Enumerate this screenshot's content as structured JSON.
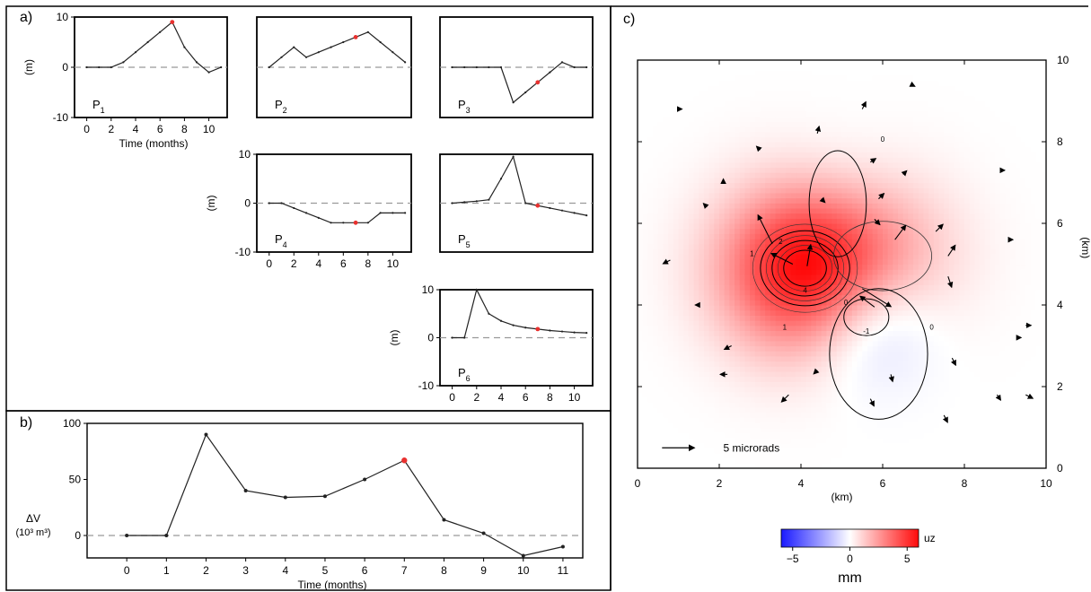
{
  "panels": {
    "a": "a)",
    "b": "b)",
    "c": "c)"
  },
  "chart_data": [
    {
      "type": "line",
      "panel": "a",
      "series_label": "P",
      "series_subscript": "1",
      "ylabel": "(m)",
      "xlabel": "Time (months)",
      "xlim": [
        -1,
        11.5
      ],
      "ylim": [
        -10,
        10
      ],
      "xticks": [
        0,
        2,
        4,
        6,
        8,
        10
      ],
      "yticks": [
        -10,
        0,
        10
      ],
      "x": [
        0,
        1,
        2,
        3,
        4,
        5,
        6,
        7,
        8,
        9,
        10,
        11
      ],
      "y": [
        0,
        0,
        0,
        1,
        3,
        5,
        7,
        9,
        4,
        1,
        -1,
        0
      ],
      "highlight_x": 7,
      "highlight_y": 9
    },
    {
      "type": "line",
      "panel": "a",
      "series_label": "P",
      "series_subscript": "2",
      "ylabel": "",
      "xlabel": "",
      "xlim": [
        -1,
        11.5
      ],
      "ylim": [
        -10,
        10
      ],
      "xticks": [],
      "yticks": [],
      "x": [
        0,
        1,
        2,
        3,
        4,
        5,
        6,
        7,
        8,
        9,
        10,
        11
      ],
      "y": [
        0,
        2,
        4,
        2,
        3,
        4,
        5,
        6,
        7,
        5,
        3,
        1
      ],
      "highlight_x": 7,
      "highlight_y": 6
    },
    {
      "type": "line",
      "panel": "a",
      "series_label": "P",
      "series_subscript": "3",
      "ylabel": "",
      "xlabel": "",
      "xlim": [
        -1,
        11.5
      ],
      "ylim": [
        -10,
        10
      ],
      "xticks": [],
      "yticks": [],
      "x": [
        0,
        1,
        2,
        3,
        4,
        5,
        6,
        7,
        8,
        9,
        10,
        11
      ],
      "y": [
        0,
        0,
        0,
        0,
        0,
        -7,
        -5,
        -3,
        -1,
        1,
        0,
        0
      ],
      "highlight_x": 7,
      "highlight_y": -3
    },
    {
      "type": "line",
      "panel": "a",
      "series_label": "P",
      "series_subscript": "4",
      "ylabel": "(m)",
      "xlabel": "",
      "xlim": [
        -1,
        11.5
      ],
      "ylim": [
        -10,
        10
      ],
      "xticks": [
        0,
        2,
        4,
        6,
        8,
        10
      ],
      "yticks": [
        -10,
        0,
        10
      ],
      "x": [
        0,
        1,
        2,
        3,
        4,
        5,
        6,
        7,
        8,
        9,
        10,
        11
      ],
      "y": [
        0,
        0,
        -1,
        -2,
        -3,
        -4,
        -4,
        -4,
        -4,
        -2,
        -2,
        -2
      ],
      "highlight_x": 7,
      "highlight_y": -4
    },
    {
      "type": "line",
      "panel": "a",
      "series_label": "P",
      "series_subscript": "5",
      "ylabel": "",
      "xlabel": "",
      "xlim": [
        -1,
        11.5
      ],
      "ylim": [
        -10,
        10
      ],
      "xticks": [],
      "yticks": [],
      "x": [
        0,
        1,
        2,
        3,
        4,
        5,
        6,
        7,
        8,
        9,
        10,
        11
      ],
      "y": [
        0,
        0.2,
        0.4,
        0.7,
        5,
        9.5,
        0,
        -0.5,
        -1,
        -1.5,
        -2,
        -2.5
      ],
      "highlight_x": 7,
      "highlight_y": -0.5
    },
    {
      "type": "line",
      "panel": "a",
      "series_label": "P",
      "series_subscript": "6",
      "ylabel": "(m)",
      "xlabel": "",
      "xlim": [
        -1,
        11.5
      ],
      "ylim": [
        -10,
        10
      ],
      "xticks": [
        0,
        2,
        4,
        6,
        8,
        10
      ],
      "yticks": [
        -10,
        0,
        10
      ],
      "x": [
        0,
        1,
        2,
        3,
        4,
        5,
        6,
        7,
        8,
        9,
        10,
        11
      ],
      "y": [
        0,
        0,
        10,
        5,
        3.5,
        2.6,
        2.1,
        1.8,
        1.5,
        1.3,
        1.1,
        1.0
      ],
      "highlight_x": 7,
      "highlight_y": 1.8
    },
    {
      "type": "line",
      "panel": "b",
      "ylabel": "ΔV",
      "ylabel_units": "(10³ m³)",
      "xlabel": "Time (months)",
      "xlim": [
        -1,
        11.5
      ],
      "ylim": [
        -20,
        100
      ],
      "xticks": [
        0,
        1,
        2,
        3,
        4,
        5,
        6,
        7,
        8,
        9,
        10,
        11
      ],
      "yticks": [
        0,
        50,
        100
      ],
      "x": [
        0,
        1,
        2,
        3,
        4,
        5,
        6,
        7,
        8,
        9,
        10,
        11
      ],
      "y": [
        0,
        0,
        90,
        40,
        34,
        35,
        50,
        67,
        14,
        2,
        -18,
        -10
      ],
      "highlight_x": 7,
      "highlight_y": 67
    },
    {
      "type": "heatmap",
      "panel": "c",
      "xlabel": "(km)",
      "ylabel": "(km)",
      "xlim": [
        0,
        10
      ],
      "ylim": [
        0,
        10
      ],
      "xticks": [
        0,
        2,
        4,
        6,
        8,
        10
      ],
      "yticks": [
        0,
        2,
        4,
        6,
        8,
        10
      ],
      "field": "uz",
      "colorbar_label": "uz",
      "colorbar_units": "mm",
      "colorbar_range": [
        -6,
        6
      ],
      "colorbar_ticks": [
        -5,
        0,
        5
      ],
      "colors": {
        "negative": "#2020ff",
        "zero": "#ffffff",
        "positive": "#ee1010"
      },
      "sources": [
        {
          "x": 4.1,
          "y": 4.9,
          "amplitude": 6.0
        },
        {
          "x": 6.0,
          "y": 5.2,
          "amplitude": 1.6
        },
        {
          "x": 5.6,
          "y": 3.7,
          "amplitude": -2.3
        },
        {
          "x": 4.9,
          "y": 6.7,
          "amplitude": -0.6
        }
      ],
      "contour_labels": [
        "0",
        "1",
        "2",
        "4",
        "-1",
        "1",
        "0",
        "0"
      ],
      "tilt_scale_label": "5 microrads",
      "tilt_vectors": [
        {
          "x": 4.15,
          "y": 4.95,
          "dx": 0.1,
          "dy": 0.6
        },
        {
          "x": 3.8,
          "y": 5.0,
          "dx": -0.6,
          "dy": 0.3
        },
        {
          "x": 3.3,
          "y": 5.5,
          "dx": -0.4,
          "dy": 0.8
        },
        {
          "x": 5.5,
          "y": 4.4,
          "dx": 0.8,
          "dy": -0.5
        },
        {
          "x": 5.8,
          "y": 3.95,
          "dx": -0.4,
          "dy": 0.3
        },
        {
          "x": 6.3,
          "y": 5.6,
          "dx": 0.3,
          "dy": 0.4
        },
        {
          "x": 7.6,
          "y": 5.2,
          "dx": 0.2,
          "dy": 0.3
        },
        {
          "x": 7.6,
          "y": 4.7,
          "dx": 0.1,
          "dy": -0.3
        },
        {
          "x": 7.3,
          "y": 5.8,
          "dx": 0.2,
          "dy": 0.2
        },
        {
          "x": 5.9,
          "y": 6.6,
          "dx": 0.15,
          "dy": 0.15
        },
        {
          "x": 5.8,
          "y": 6.1,
          "dx": 0.15,
          "dy": -0.15
        },
        {
          "x": 4.5,
          "y": 6.6,
          "dx": 0.1,
          "dy": -0.1
        },
        {
          "x": 5.7,
          "y": 7.5,
          "dx": 0.15,
          "dy": 0.1
        },
        {
          "x": 4.4,
          "y": 8.2,
          "dx": 0.05,
          "dy": 0.2
        },
        {
          "x": 5.5,
          "y": 8.8,
          "dx": 0.1,
          "dy": 0.2
        },
        {
          "x": 3.0,
          "y": 7.8,
          "dx": -0.1,
          "dy": 0.1
        },
        {
          "x": 6.5,
          "y": 7.2,
          "dx": 0.1,
          "dy": 0.1
        },
        {
          "x": 6.2,
          "y": 2.3,
          "dx": 0.05,
          "dy": -0.2
        },
        {
          "x": 4.4,
          "y": 2.4,
          "dx": -0.1,
          "dy": -0.1
        },
        {
          "x": 5.7,
          "y": 1.7,
          "dx": 0.1,
          "dy": -0.2
        },
        {
          "x": 3.7,
          "y": 1.8,
          "dx": -0.2,
          "dy": -0.2
        },
        {
          "x": 2.3,
          "y": 3.0,
          "dx": -0.2,
          "dy": -0.1
        },
        {
          "x": 2.2,
          "y": 2.3,
          "dx": -0.2,
          "dy": 0.0
        },
        {
          "x": 0.8,
          "y": 5.1,
          "dx": -0.2,
          "dy": -0.1
        },
        {
          "x": 1.7,
          "y": 6.4,
          "dx": -0.1,
          "dy": 0.1
        },
        {
          "x": 7.5,
          "y": 1.3,
          "dx": 0.1,
          "dy": -0.2
        },
        {
          "x": 7.7,
          "y": 2.7,
          "dx": 0.1,
          "dy": -0.2
        },
        {
          "x": 8.8,
          "y": 1.8,
          "dx": 0.1,
          "dy": -0.15
        },
        {
          "x": 9.5,
          "y": 1.8,
          "dx": 0.2,
          "dy": -0.1
        },
        {
          "x": 9.5,
          "y": 3.5,
          "dx": 0.15,
          "dy": 0.0
        },
        {
          "x": 9.1,
          "y": 5.6,
          "dx": 0.1,
          "dy": 0.0
        },
        {
          "x": 9.3,
          "y": 3.2,
          "dx": 0.1,
          "dy": 0.0
        },
        {
          "x": 8.9,
          "y": 7.3,
          "dx": 0.1,
          "dy": 0.0
        },
        {
          "x": 1.0,
          "y": 8.8,
          "dx": 0.1,
          "dy": 0.0
        },
        {
          "x": 2.1,
          "y": 7.0,
          "dx": 0.0,
          "dy": 0.1
        },
        {
          "x": 1.5,
          "y": 4.0,
          "dx": -0.1,
          "dy": 0.0
        },
        {
          "x": 6.7,
          "y": 9.4,
          "dx": 0.1,
          "dy": -0.05
        }
      ]
    }
  ]
}
